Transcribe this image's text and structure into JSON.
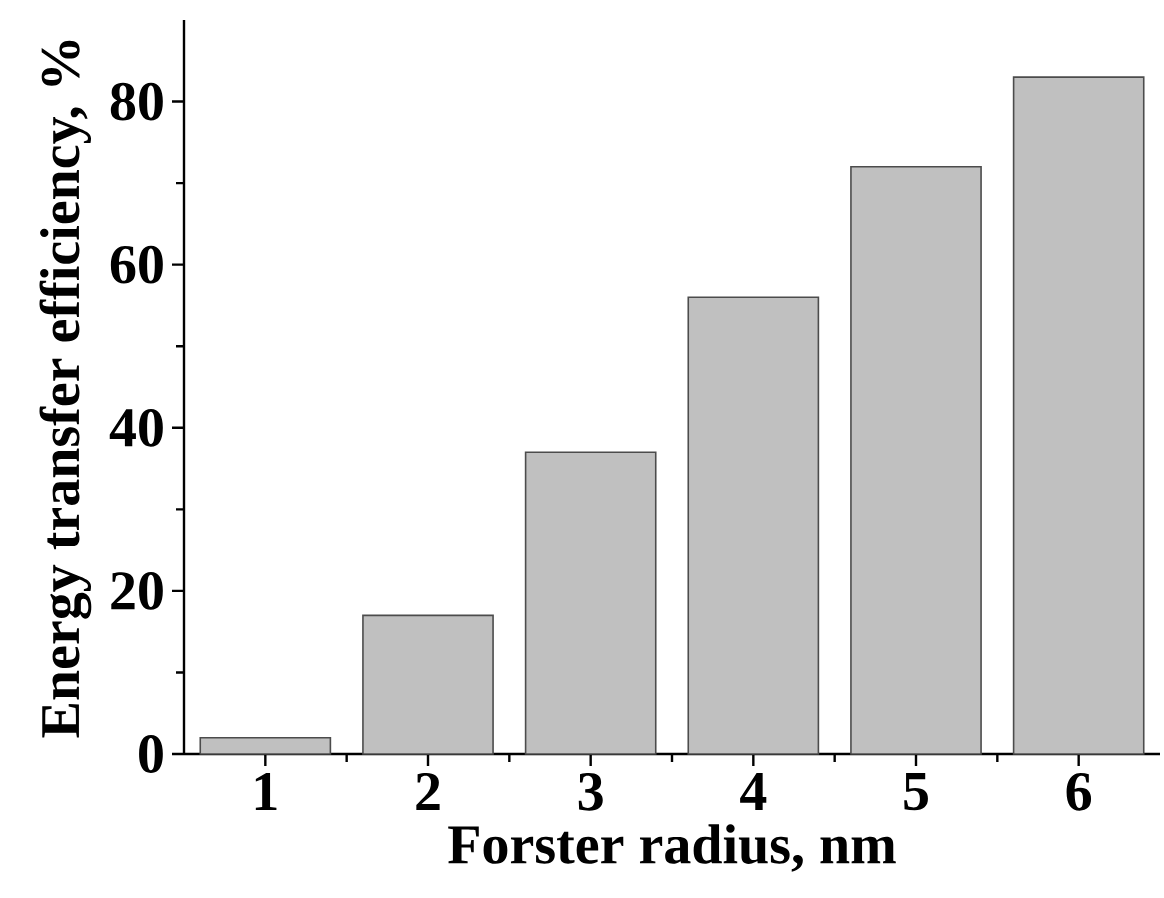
{
  "chart_data": {
    "type": "bar",
    "xlabel": "Forster radius, nm",
    "ylabel": "Energy transfer efficiency, %",
    "x": [
      1,
      2,
      3,
      4,
      5,
      6
    ],
    "values": [
      2,
      17,
      37,
      56,
      72,
      83
    ],
    "color": "#c0c0c0",
    "xlim": [
      0.5,
      6.5
    ],
    "xticks": [
      1,
      2,
      3,
      4,
      5,
      6
    ],
    "ylim": [
      0,
      90
    ],
    "yticks": [
      0,
      20,
      40,
      60,
      80
    ],
    "grid": false
  }
}
